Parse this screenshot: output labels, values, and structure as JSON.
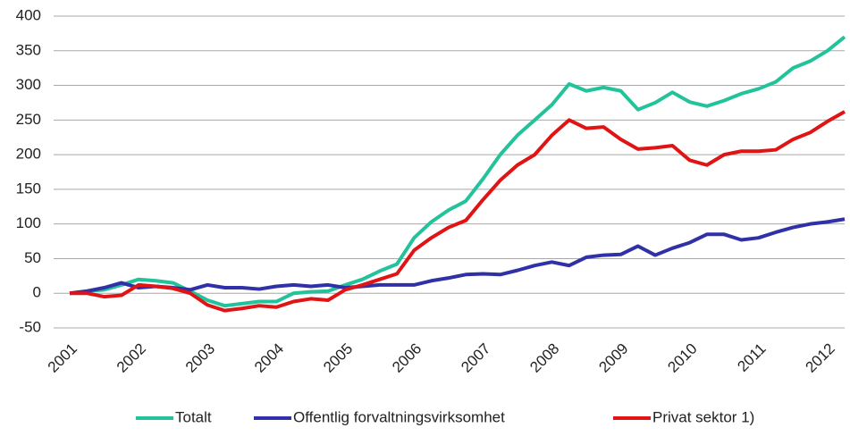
{
  "chart_data": {
    "type": "line",
    "categories": [
      "2001",
      null,
      null,
      null,
      "2002",
      null,
      null,
      null,
      "2003",
      null,
      null,
      null,
      "2004",
      null,
      null,
      null,
      "2005",
      null,
      null,
      null,
      "2006",
      null,
      null,
      null,
      "2007",
      null,
      null,
      null,
      "2008",
      null,
      null,
      null,
      "2009",
      null,
      null,
      null,
      "2010",
      null,
      null,
      null,
      "2011",
      null,
      null,
      null,
      "2012",
      null
    ],
    "series": [
      {
        "name": "Totalt",
        "color": "#22c39a",
        "values": [
          0,
          3,
          5,
          12,
          20,
          18,
          15,
          3,
          -10,
          -18,
          -15,
          -12,
          -12,
          0,
          2,
          3,
          12,
          20,
          32,
          42,
          80,
          103,
          120,
          133,
          165,
          200,
          228,
          250,
          272,
          302,
          292,
          297,
          292,
          265,
          275,
          290,
          276,
          270,
          278,
          288,
          295,
          305,
          325,
          335,
          350,
          370
        ]
      },
      {
        "name": "Offentlig forvaltningsvirksomhet",
        "color": "#3030a8",
        "values": [
          0,
          3,
          8,
          15,
          8,
          10,
          8,
          5,
          12,
          8,
          8,
          6,
          10,
          12,
          10,
          12,
          8,
          10,
          12,
          12,
          12,
          18,
          22,
          27,
          28,
          27,
          33,
          40,
          45,
          40,
          52,
          55,
          56,
          68,
          55,
          65,
          73,
          85,
          85,
          77,
          80,
          88,
          95,
          100,
          103,
          107
        ]
      },
      {
        "name": "Privat sektor 1)",
        "color": "#e01414",
        "values": [
          0,
          0,
          -5,
          -3,
          12,
          10,
          7,
          0,
          -17,
          -25,
          -22,
          -18,
          -20,
          -12,
          -8,
          -10,
          5,
          12,
          20,
          28,
          62,
          80,
          95,
          105,
          135,
          163,
          185,
          200,
          228,
          250,
          238,
          240,
          222,
          208,
          210,
          213,
          192,
          185,
          200,
          205,
          205,
          207,
          222,
          232,
          248,
          262
        ]
      }
    ],
    "ylim": [
      -50,
      400
    ],
    "yticks": [
      -50,
      0,
      50,
      100,
      150,
      200,
      250,
      300,
      350,
      400
    ],
    "grid": true
  }
}
